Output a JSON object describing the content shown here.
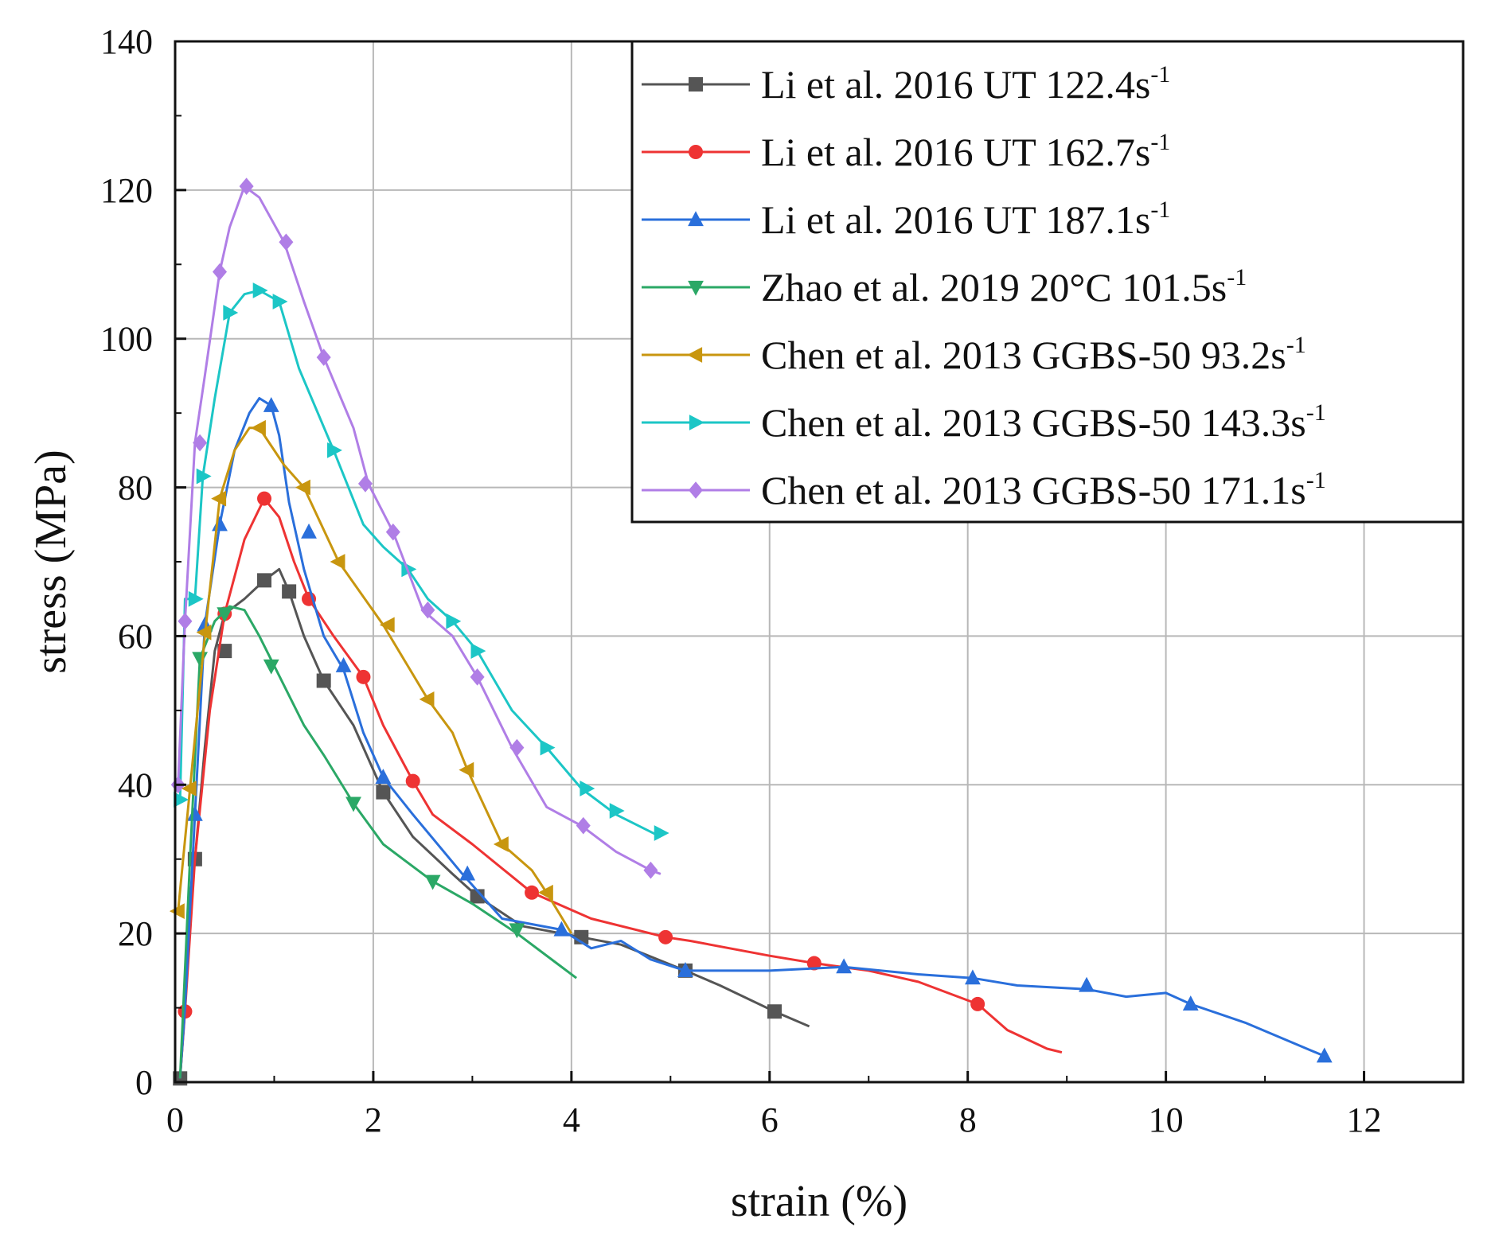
{
  "chart_data": {
    "type": "line",
    "title": "",
    "xlabel": "strain (%)",
    "ylabel": "stress (MPa)",
    "xlim": [
      0,
      13
    ],
    "ylim": [
      0,
      140
    ],
    "x_ticks": [
      "0",
      "2",
      "4",
      "6",
      "8",
      "10",
      "12"
    ],
    "y_ticks": [
      "0",
      "20",
      "40",
      "60",
      "80",
      "100",
      "120",
      "140"
    ],
    "grid": true,
    "legend_position": "top-right",
    "series": [
      {
        "name": "Li et al. 2016 UT 122.4s",
        "sup": "-1",
        "color": "#555555",
        "marker": "square",
        "x": [
          0.05,
          0.1,
          0.15,
          0.2,
          0.3,
          0.4,
          0.5,
          0.6,
          0.7,
          0.9,
          1.05,
          1.15,
          1.3,
          1.5,
          1.8,
          2.1,
          2.4,
          2.8,
          3.05,
          3.5,
          4.1,
          4.5,
          5.15,
          5.5,
          6.05,
          6.4
        ],
        "y": [
          0.5,
          10,
          25,
          30,
          45,
          58,
          63,
          64,
          65,
          67.5,
          69,
          66,
          60,
          54,
          48,
          39,
          33,
          28,
          25,
          21,
          19.5,
          18.5,
          15,
          13,
          9.5,
          7.5
        ],
        "markers_x": [
          0.05,
          0.2,
          0.5,
          0.9,
          1.15,
          1.5,
          2.1,
          3.05,
          4.1,
          5.15,
          6.05
        ],
        "markers_y": [
          0.5,
          30,
          58,
          67.5,
          66,
          54,
          39,
          25,
          19.5,
          15,
          9.5
        ]
      },
      {
        "name": "Li et al. 2016 UT 162.7s",
        "sup": "-1",
        "color": "#ee3333",
        "marker": "circle",
        "x": [
          0.05,
          0.1,
          0.2,
          0.35,
          0.5,
          0.7,
          0.9,
          1.05,
          1.2,
          1.35,
          1.6,
          1.9,
          2.1,
          2.4,
          2.6,
          3.0,
          3.6,
          4.2,
          4.95,
          5.2,
          6.0,
          6.45,
          7.0,
          7.5,
          8.1,
          8.4,
          8.8,
          8.95
        ],
        "y": [
          0.5,
          9.5,
          30,
          50,
          63,
          73,
          78.5,
          76,
          70,
          65,
          60,
          54.5,
          48,
          40.5,
          36,
          32,
          25.5,
          22,
          19.5,
          19,
          17,
          16,
          15,
          13.5,
          10.5,
          7,
          4.5,
          4
        ],
        "markers_x": [
          0.1,
          0.5,
          0.9,
          1.35,
          1.9,
          2.4,
          3.6,
          4.95,
          6.45,
          8.1
        ],
        "markers_y": [
          9.5,
          63,
          78.5,
          65,
          54.5,
          40.5,
          25.5,
          19.5,
          16,
          10.5
        ]
      },
      {
        "name": "Li et al. 2016 UT 187.1s",
        "sup": "-1",
        "color": "#2a6fdb",
        "marker": "triangle-up",
        "x": [
          0.05,
          0.1,
          0.2,
          0.3,
          0.45,
          0.6,
          0.75,
          0.85,
          0.97,
          1.05,
          1.15,
          1.3,
          1.5,
          1.7,
          1.9,
          2.1,
          2.4,
          2.9,
          3.3,
          3.9,
          4.2,
          4.5,
          4.8,
          5.15,
          6.0,
          6.75,
          7.5,
          8.05,
          8.5,
          9.2,
          9.6,
          10.0,
          10.25,
          10.8,
          11.6
        ],
        "y": [
          0.5,
          10,
          36,
          61.5,
          75,
          85,
          90,
          92,
          91,
          87,
          78,
          69,
          60,
          55.5,
          47,
          41,
          36,
          28,
          22,
          20.5,
          18,
          19,
          16.5,
          15,
          15,
          15.5,
          14.5,
          14,
          13,
          12.5,
          11.5,
          12,
          10.5,
          8,
          3.5
        ],
        "markers_x": [
          0.2,
          0.3,
          0.45,
          0.97,
          1.35,
          1.7,
          2.1,
          2.95,
          3.9,
          5.15,
          6.75,
          8.05,
          9.2,
          10.25,
          11.6
        ],
        "markers_y": [
          36,
          61.5,
          75,
          91,
          74,
          56,
          41,
          28,
          20.5,
          15,
          15.5,
          14,
          13,
          10.5,
          3.5
        ]
      },
      {
        "name": "Zhao et al. 2019 20°C 101.5s",
        "sup": "-1",
        "color": "#2ba866",
        "marker": "triangle-down",
        "x": [
          0.05,
          0.15,
          0.25,
          0.4,
          0.55,
          0.7,
          0.85,
          1.0,
          1.3,
          1.5,
          1.8,
          2.1,
          2.6,
          3.0,
          3.45,
          3.85,
          4.05
        ],
        "y": [
          0.5,
          30,
          57,
          62,
          64,
          63.5,
          60,
          56,
          48,
          44,
          37.5,
          32,
          27,
          24,
          20,
          16,
          14
        ],
        "markers_x": [
          0.25,
          0.5,
          0.97,
          1.8,
          2.6,
          3.45
        ],
        "markers_y": [
          57,
          63,
          56,
          37.5,
          27,
          20.5
        ]
      },
      {
        "name": "Chen et al. 2013 GGBS-50 93.2s",
        "sup": "-1",
        "color": "#c8960f",
        "marker": "triangle-left",
        "x": [
          0.03,
          0.15,
          0.3,
          0.45,
          0.6,
          0.75,
          0.85,
          0.95,
          1.1,
          1.3,
          1.65,
          2.1,
          2.55,
          2.8,
          2.95,
          3.3,
          3.6,
          3.75,
          4.0
        ],
        "y": [
          23,
          39.5,
          60,
          78.5,
          85,
          88,
          88,
          86,
          83,
          80,
          70,
          61.5,
          51.5,
          47,
          42,
          32,
          28.5,
          25.5,
          20
        ],
        "markers_x": [
          0.03,
          0.15,
          0.3,
          0.45,
          0.85,
          1.3,
          1.65,
          2.15,
          2.55,
          2.95,
          3.3,
          3.75
        ],
        "markers_y": [
          23,
          39.5,
          60.5,
          78.5,
          88,
          80,
          70,
          61.5,
          51.5,
          42,
          32,
          25.5
        ]
      },
      {
        "name": "Chen et al. 2013 GGBS-50 143.3s",
        "sup": "-1",
        "color": "#1cc6c6",
        "marker": "triangle-right",
        "x": [
          0.05,
          0.1,
          0.2,
          0.28,
          0.4,
          0.55,
          0.7,
          0.85,
          1.05,
          1.25,
          1.6,
          1.9,
          2.1,
          2.35,
          2.55,
          2.8,
          3.05,
          3.4,
          3.75,
          4.1,
          4.45,
          4.9
        ],
        "y": [
          38,
          65,
          65,
          81.5,
          92,
          103.5,
          106,
          106.5,
          105,
          96,
          85,
          75,
          72,
          69,
          65,
          62,
          58,
          50,
          45,
          39.5,
          36,
          33
        ],
        "markers_x": [
          0.05,
          0.2,
          0.28,
          0.55,
          0.85,
          1.05,
          1.6,
          2.35,
          2.8,
          3.05,
          3.75,
          4.15,
          4.45,
          4.9
        ],
        "markers_y": [
          38,
          65,
          81.5,
          103.5,
          106.5,
          105,
          85,
          69,
          62,
          58,
          45,
          39.5,
          36.5,
          33.5
        ]
      },
      {
        "name": "Chen et al. 2013 GGBS-50 171.1s",
        "sup": "-1",
        "color": "#b07ee6",
        "marker": "diamond",
        "x": [
          0.03,
          0.1,
          0.2,
          0.3,
          0.45,
          0.55,
          0.7,
          0.85,
          1.1,
          1.3,
          1.5,
          1.8,
          1.95,
          2.2,
          2.5,
          2.8,
          3.05,
          3.4,
          3.75,
          4.1,
          4.45,
          4.8,
          4.9
        ],
        "y": [
          40,
          62,
          86,
          95,
          109,
          115,
          120.5,
          119,
          113,
          105,
          97.5,
          88,
          80.5,
          74,
          63.5,
          60,
          54.5,
          45,
          37,
          34.5,
          31,
          28.5,
          28
        ],
        "markers_x": [
          0.03,
          0.1,
          0.25,
          0.45,
          0.72,
          1.12,
          1.5,
          1.92,
          2.2,
          2.55,
          3.05,
          3.45,
          4.12,
          4.8
        ],
        "markers_y": [
          40,
          62,
          86,
          109,
          120.5,
          113,
          97.5,
          80.5,
          74,
          63.5,
          54.5,
          45,
          34.5,
          28.5
        ]
      }
    ]
  }
}
